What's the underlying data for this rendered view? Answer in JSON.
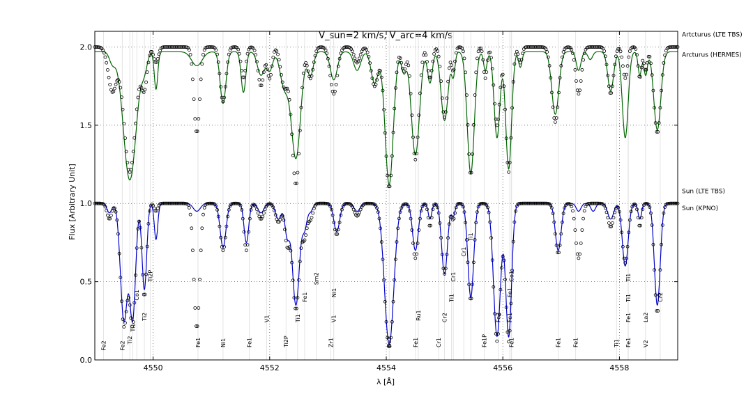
{
  "chart_data": {
    "type": "line",
    "title": "V_sun=2 km/s, V_arc=4 km/s",
    "xlabel": "λ [Å]",
    "ylabel": "Flux [Arbitrary Unit]",
    "xlim": [
      4549.0,
      4559.0
    ],
    "ylim": [
      0.0,
      2.1
    ],
    "xticks": [
      4550,
      4552,
      4554,
      4556,
      4558
    ],
    "yticks": [
      0.0,
      0.5,
      1.0,
      1.5,
      2.0
    ],
    "grid": true,
    "legend_labels": [
      {
        "text": "Artcturus (LTE TBS)",
        "y": 2.08
      },
      {
        "text": "Arcturus (HERMES)",
        "y": 1.95
      },
      {
        "text": "Sun (LTE TBS)",
        "y": 1.08
      },
      {
        "text": "Sun (KPNO)",
        "y": 0.97
      }
    ],
    "series": [
      {
        "name": "Arcturus (HERMES)",
        "color": "#006400",
        "style": "line",
        "offset": 1.0,
        "continuum": 0.97,
        "lines": [
          [
            4549.3,
            0.07,
            0.05
          ],
          [
            4549.6,
            0.82,
            0.11
          ],
          [
            4549.85,
            0.1,
            0.05
          ],
          [
            4550.05,
            0.24,
            0.03
          ],
          [
            4550.75,
            0.09,
            0.09
          ],
          [
            4551.2,
            0.33,
            0.05
          ],
          [
            4551.55,
            0.26,
            0.04
          ],
          [
            4551.85,
            0.15,
            0.06
          ],
          [
            4552.0,
            0.12,
            0.05
          ],
          [
            4552.25,
            0.22,
            0.07
          ],
          [
            4552.45,
            0.68,
            0.08
          ],
          [
            4552.7,
            0.15,
            0.05
          ],
          [
            4553.1,
            0.18,
            0.06
          ],
          [
            4553.5,
            0.12,
            0.06
          ],
          [
            4553.8,
            0.2,
            0.06
          ],
          [
            4554.05,
            0.85,
            0.07
          ],
          [
            4554.3,
            0.13,
            0.04
          ],
          [
            4554.5,
            0.66,
            0.07
          ],
          [
            4554.75,
            0.2,
            0.04
          ],
          [
            4555.0,
            0.44,
            0.06
          ],
          [
            4555.15,
            0.15,
            0.03
          ],
          [
            4555.45,
            0.78,
            0.06
          ],
          [
            4555.7,
            0.12,
            0.03
          ],
          [
            4555.9,
            0.55,
            0.05
          ],
          [
            4556.1,
            0.75,
            0.05
          ],
          [
            4556.3,
            0.1,
            0.03
          ],
          [
            4556.9,
            0.4,
            0.06
          ],
          [
            4557.3,
            0.12,
            0.04
          ],
          [
            4557.5,
            0.05,
            0.04
          ],
          [
            4557.85,
            0.25,
            0.05
          ],
          [
            4558.1,
            0.55,
            0.05
          ],
          [
            4558.35,
            0.15,
            0.03
          ],
          [
            4558.65,
            0.5,
            0.06
          ],
          [
            4558.45,
            0.15,
            0.03
          ]
        ]
      },
      {
        "name": "Artcturus (LTE TBS)",
        "color": "#000000",
        "style": "circles",
        "offset": 1.0,
        "continuum": 1.0,
        "lines": [
          [
            4549.3,
            0.28,
            0.07
          ],
          [
            4549.6,
            0.8,
            0.1
          ],
          [
            4549.85,
            0.25,
            0.05
          ],
          [
            4550.05,
            0.1,
            0.04
          ],
          [
            4550.75,
            0.55,
            0.05
          ],
          [
            4551.2,
            0.35,
            0.05
          ],
          [
            4551.55,
            0.2,
            0.04
          ],
          [
            4551.85,
            0.25,
            0.05
          ],
          [
            4552.0,
            0.2,
            0.04
          ],
          [
            4552.25,
            0.25,
            0.06
          ],
          [
            4552.45,
            0.88,
            0.07
          ],
          [
            4552.7,
            0.2,
            0.05
          ],
          [
            4553.1,
            0.3,
            0.06
          ],
          [
            4553.5,
            0.1,
            0.05
          ],
          [
            4553.8,
            0.25,
            0.06
          ],
          [
            4554.05,
            0.9,
            0.07
          ],
          [
            4554.3,
            0.15,
            0.04
          ],
          [
            4554.5,
            0.72,
            0.06
          ],
          [
            4554.75,
            0.2,
            0.04
          ],
          [
            4555.0,
            0.45,
            0.05
          ],
          [
            4555.15,
            0.15,
            0.03
          ],
          [
            4555.45,
            0.82,
            0.05
          ],
          [
            4555.7,
            0.2,
            0.03
          ],
          [
            4555.9,
            0.5,
            0.05
          ],
          [
            4556.1,
            0.8,
            0.05
          ],
          [
            4556.3,
            0.1,
            0.03
          ],
          [
            4556.9,
            0.48,
            0.06
          ],
          [
            4557.3,
            0.3,
            0.05
          ],
          [
            4557.85,
            0.3,
            0.05
          ],
          [
            4558.1,
            0.2,
            0.04
          ],
          [
            4558.35,
            0.2,
            0.03
          ],
          [
            4558.65,
            0.55,
            0.06
          ],
          [
            4558.45,
            0.15,
            0.03
          ]
        ]
      },
      {
        "name": "Sun (KPNO)",
        "color": "#0000cc",
        "style": "line",
        "offset": 0.0,
        "continuum": 1.0,
        "lines": [
          [
            4549.25,
            0.06,
            0.04
          ],
          [
            4549.5,
            0.75,
            0.06
          ],
          [
            4549.65,
            0.72,
            0.05
          ],
          [
            4549.85,
            0.55,
            0.04
          ],
          [
            4550.05,
            0.23,
            0.03
          ],
          [
            4550.75,
            0.05,
            0.06
          ],
          [
            4551.2,
            0.28,
            0.05
          ],
          [
            4551.6,
            0.25,
            0.04
          ],
          [
            4551.85,
            0.06,
            0.05
          ],
          [
            4552.15,
            0.1,
            0.05
          ],
          [
            4552.3,
            0.2,
            0.04
          ],
          [
            4552.45,
            0.65,
            0.06
          ],
          [
            4552.6,
            0.15,
            0.04
          ],
          [
            4552.7,
            0.05,
            0.04
          ],
          [
            4553.15,
            0.18,
            0.05
          ],
          [
            4553.5,
            0.05,
            0.05
          ],
          [
            4554.05,
            0.9,
            0.08
          ],
          [
            4554.5,
            0.3,
            0.05
          ],
          [
            4554.75,
            0.1,
            0.03
          ],
          [
            4555.0,
            0.45,
            0.05
          ],
          [
            4555.15,
            0.08,
            0.03
          ],
          [
            4555.45,
            0.6,
            0.05
          ],
          [
            4555.9,
            0.85,
            0.06
          ],
          [
            4556.1,
            0.85,
            0.05
          ],
          [
            4556.95,
            0.3,
            0.05
          ],
          [
            4557.3,
            0.05,
            0.04
          ],
          [
            4557.55,
            0.05,
            0.04
          ],
          [
            4557.85,
            0.1,
            0.05
          ],
          [
            4558.1,
            0.4,
            0.05
          ],
          [
            4558.35,
            0.1,
            0.03
          ],
          [
            4558.65,
            0.65,
            0.05
          ]
        ]
      },
      {
        "name": "Sun (LTE TBS)",
        "color": "#000000",
        "style": "circles",
        "offset": 0.0,
        "continuum": 1.0,
        "lines": [
          [
            4549.25,
            0.1,
            0.04
          ],
          [
            4549.5,
            0.78,
            0.06
          ],
          [
            4549.65,
            0.75,
            0.05
          ],
          [
            4549.85,
            0.6,
            0.04
          ],
          [
            4550.05,
            0.05,
            0.03
          ],
          [
            4550.75,
            0.8,
            0.05
          ],
          [
            4551.2,
            0.3,
            0.05
          ],
          [
            4551.6,
            0.3,
            0.04
          ],
          [
            4551.85,
            0.1,
            0.05
          ],
          [
            4552.15,
            0.12,
            0.05
          ],
          [
            4552.3,
            0.25,
            0.04
          ],
          [
            4552.45,
            0.68,
            0.06
          ],
          [
            4552.6,
            0.2,
            0.04
          ],
          [
            4552.7,
            0.1,
            0.04
          ],
          [
            4553.15,
            0.2,
            0.05
          ],
          [
            4553.5,
            0.08,
            0.05
          ],
          [
            4554.05,
            0.92,
            0.08
          ],
          [
            4554.5,
            0.35,
            0.05
          ],
          [
            4554.75,
            0.15,
            0.03
          ],
          [
            4555.0,
            0.45,
            0.05
          ],
          [
            4555.15,
            0.1,
            0.03
          ],
          [
            4555.45,
            0.62,
            0.05
          ],
          [
            4555.9,
            0.88,
            0.06
          ],
          [
            4556.1,
            0.88,
            0.05
          ],
          [
            4556.95,
            0.32,
            0.05
          ],
          [
            4557.3,
            0.35,
            0.05
          ],
          [
            4557.85,
            0.15,
            0.05
          ],
          [
            4558.1,
            0.38,
            0.05
          ],
          [
            4558.35,
            0.15,
            0.03
          ],
          [
            4558.65,
            0.7,
            0.05
          ]
        ]
      }
    ],
    "line_ids": [
      {
        "x": 4549.15,
        "y": 0.06,
        "label": "Fe2"
      },
      {
        "x": 4549.47,
        "y": 0.06,
        "label": "Fe2"
      },
      {
        "x": 4549.6,
        "y": 0.1,
        "label": "Ti2"
      },
      {
        "x": 4549.65,
        "y": 0.18,
        "label": "Ti1"
      },
      {
        "x": 4549.72,
        "y": 0.38,
        "label": "Co1"
      },
      {
        "x": 4549.85,
        "y": 0.25,
        "label": "Ti2"
      },
      {
        "x": 4549.95,
        "y": 0.5,
        "label": "Ti2P"
      },
      {
        "x": 4550.77,
        "y": 0.08,
        "label": "Fe1"
      },
      {
        "x": 4551.2,
        "y": 0.08,
        "label": "Ni1"
      },
      {
        "x": 4551.65,
        "y": 0.08,
        "label": "Fe1"
      },
      {
        "x": 4551.95,
        "y": 0.24,
        "label": "V1"
      },
      {
        "x": 4552.28,
        "y": 0.08,
        "label": "Ti2P"
      },
      {
        "x": 4552.48,
        "y": 0.24,
        "label": "Ti1"
      },
      {
        "x": 4552.6,
        "y": 0.37,
        "label": "Fe1"
      },
      {
        "x": 4552.8,
        "y": 0.48,
        "label": "Sm2"
      },
      {
        "x": 4553.05,
        "y": 0.08,
        "label": "Zr1"
      },
      {
        "x": 4553.1,
        "y": 0.24,
        "label": "V1"
      },
      {
        "x": 4553.1,
        "y": 0.4,
        "label": "Ni1"
      },
      {
        "x": 4554.05,
        "y": 0.08,
        "label": "Ba2"
      },
      {
        "x": 4554.5,
        "y": 0.08,
        "label": "Fe1"
      },
      {
        "x": 4554.55,
        "y": 0.25,
        "label": "Ru1"
      },
      {
        "x": 4554.9,
        "y": 0.08,
        "label": "Cr1"
      },
      {
        "x": 4555.0,
        "y": 0.24,
        "label": "Cr2"
      },
      {
        "x": 4555.12,
        "y": 0.37,
        "label": "Ti1"
      },
      {
        "x": 4555.15,
        "y": 0.5,
        "label": "Cr1"
      },
      {
        "x": 4555.33,
        "y": 0.66,
        "label": "Cr1"
      },
      {
        "x": 4555.45,
        "y": 0.76,
        "label": "Ti1"
      },
      {
        "x": 4555.68,
        "y": 0.08,
        "label": "Fe1P"
      },
      {
        "x": 4555.92,
        "y": 0.24,
        "label": "Fe2"
      },
      {
        "x": 4556.15,
        "y": 0.08,
        "label": "Fe1"
      },
      {
        "x": 4556.12,
        "y": 0.24,
        "label": "Fe1"
      },
      {
        "x": 4556.12,
        "y": 0.4,
        "label": "Fe1"
      },
      {
        "x": 4556.15,
        "y": 0.5,
        "label": "Co1"
      },
      {
        "x": 4556.95,
        "y": 0.08,
        "label": "Fe1"
      },
      {
        "x": 4557.25,
        "y": 0.08,
        "label": "Fe1"
      },
      {
        "x": 4557.95,
        "y": 0.08,
        "label": "Ti1"
      },
      {
        "x": 4558.15,
        "y": 0.08,
        "label": "Fe1"
      },
      {
        "x": 4558.15,
        "y": 0.24,
        "label": "Fe1"
      },
      {
        "x": 4558.15,
        "y": 0.37,
        "label": "Ti1"
      },
      {
        "x": 4558.15,
        "y": 0.5,
        "label": "Ti1"
      },
      {
        "x": 4558.45,
        "y": 0.08,
        "label": "V2"
      },
      {
        "x": 4558.45,
        "y": 0.24,
        "label": "La2"
      },
      {
        "x": 4558.7,
        "y": 0.37,
        "label": "Cr2"
      }
    ]
  }
}
